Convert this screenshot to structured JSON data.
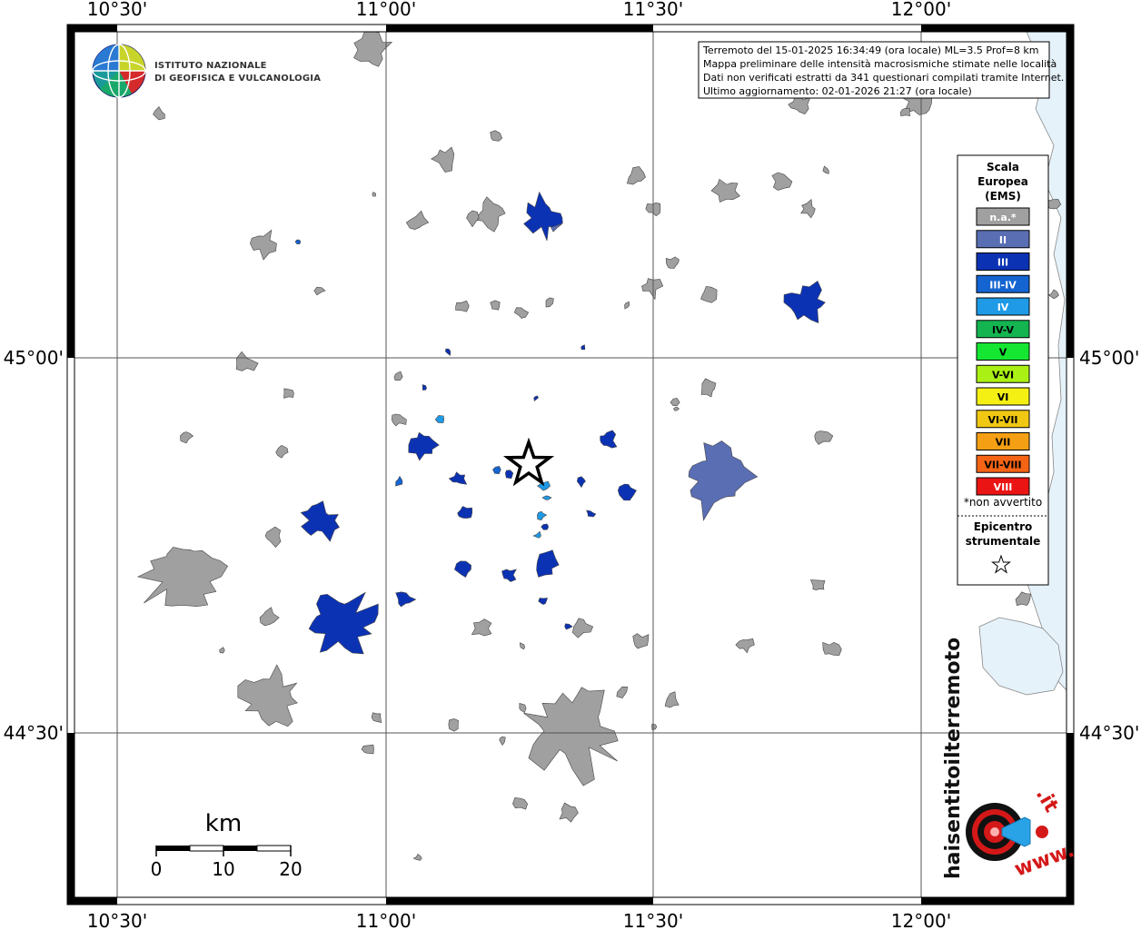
{
  "map": {
    "lon_labels": [
      "10°30'",
      "11°00'",
      "11°30'",
      "12°00'"
    ],
    "lat_labels": [
      "45°00'",
      "44°30'"
    ]
  },
  "logo": {
    "line1": "ISTITUTO NAZIONALE",
    "line2": "DI GEOFISICA E VULCANOLOGIA"
  },
  "info": {
    "lines": [
      "Terremoto del 15-01-2025 16:34:49 (ora locale) ML=3.5 Prof=8 km",
      "Mappa preliminare delle intensità macrosismiche stimate nelle località",
      "Dati non verificati estratti da 341 questionari compilati tramite Internet.",
      "Ultimo aggiornamento: 02-01-2026 21:27 (ora locale)"
    ]
  },
  "legend": {
    "title_lines": [
      "Scala",
      "Europea",
      "(EMS)"
    ],
    "items": [
      {
        "label": "n.a.*",
        "color": "#a0a0a0",
        "text_color": "#ffffff"
      },
      {
        "label": "II",
        "color": "#5a6eb4",
        "text_color": "#ffffff"
      },
      {
        "label": "III",
        "color": "#0c32b4",
        "text_color": "#ffffff"
      },
      {
        "label": "III-IV",
        "color": "#1464d2",
        "text_color": "#ffffff"
      },
      {
        "label": "IV",
        "color": "#1e9ae6",
        "text_color": "#ffffff"
      },
      {
        "label": "IV-V",
        "color": "#14b450",
        "text_color": "#000000"
      },
      {
        "label": "V",
        "color": "#14e632",
        "text_color": "#000000"
      },
      {
        "label": "V-VI",
        "color": "#aaf014",
        "text_color": "#000000"
      },
      {
        "label": "VI",
        "color": "#f5f014",
        "text_color": "#000000"
      },
      {
        "label": "VI-VII",
        "color": "#f0c814",
        "text_color": "#000000"
      },
      {
        "label": "VII",
        "color": "#f5a014",
        "text_color": "#000000"
      },
      {
        "label": "VII-VIII",
        "color": "#f56414",
        "text_color": "#000000"
      },
      {
        "label": "VIII",
        "color": "#eb1414",
        "text_color": "#ffffff"
      }
    ],
    "not_felt": "*non avvertito",
    "epicenter_lines": [
      "Epicentro",
      "strumentale"
    ]
  },
  "scale_bar": {
    "unit": "km",
    "labels": [
      "0",
      "10",
      "20"
    ]
  },
  "haisentito": {
    "text_main": "haisentitoilterremoto",
    "text_it": ".it",
    "text_www": "www."
  },
  "colors": {
    "na": "#a0a0a0",
    "II": "#5a6eb4",
    "III": "#0c32b4",
    "III_IV": "#1464d2",
    "IV": "#1e9ae6",
    "sea": "#e6f2fa"
  }
}
